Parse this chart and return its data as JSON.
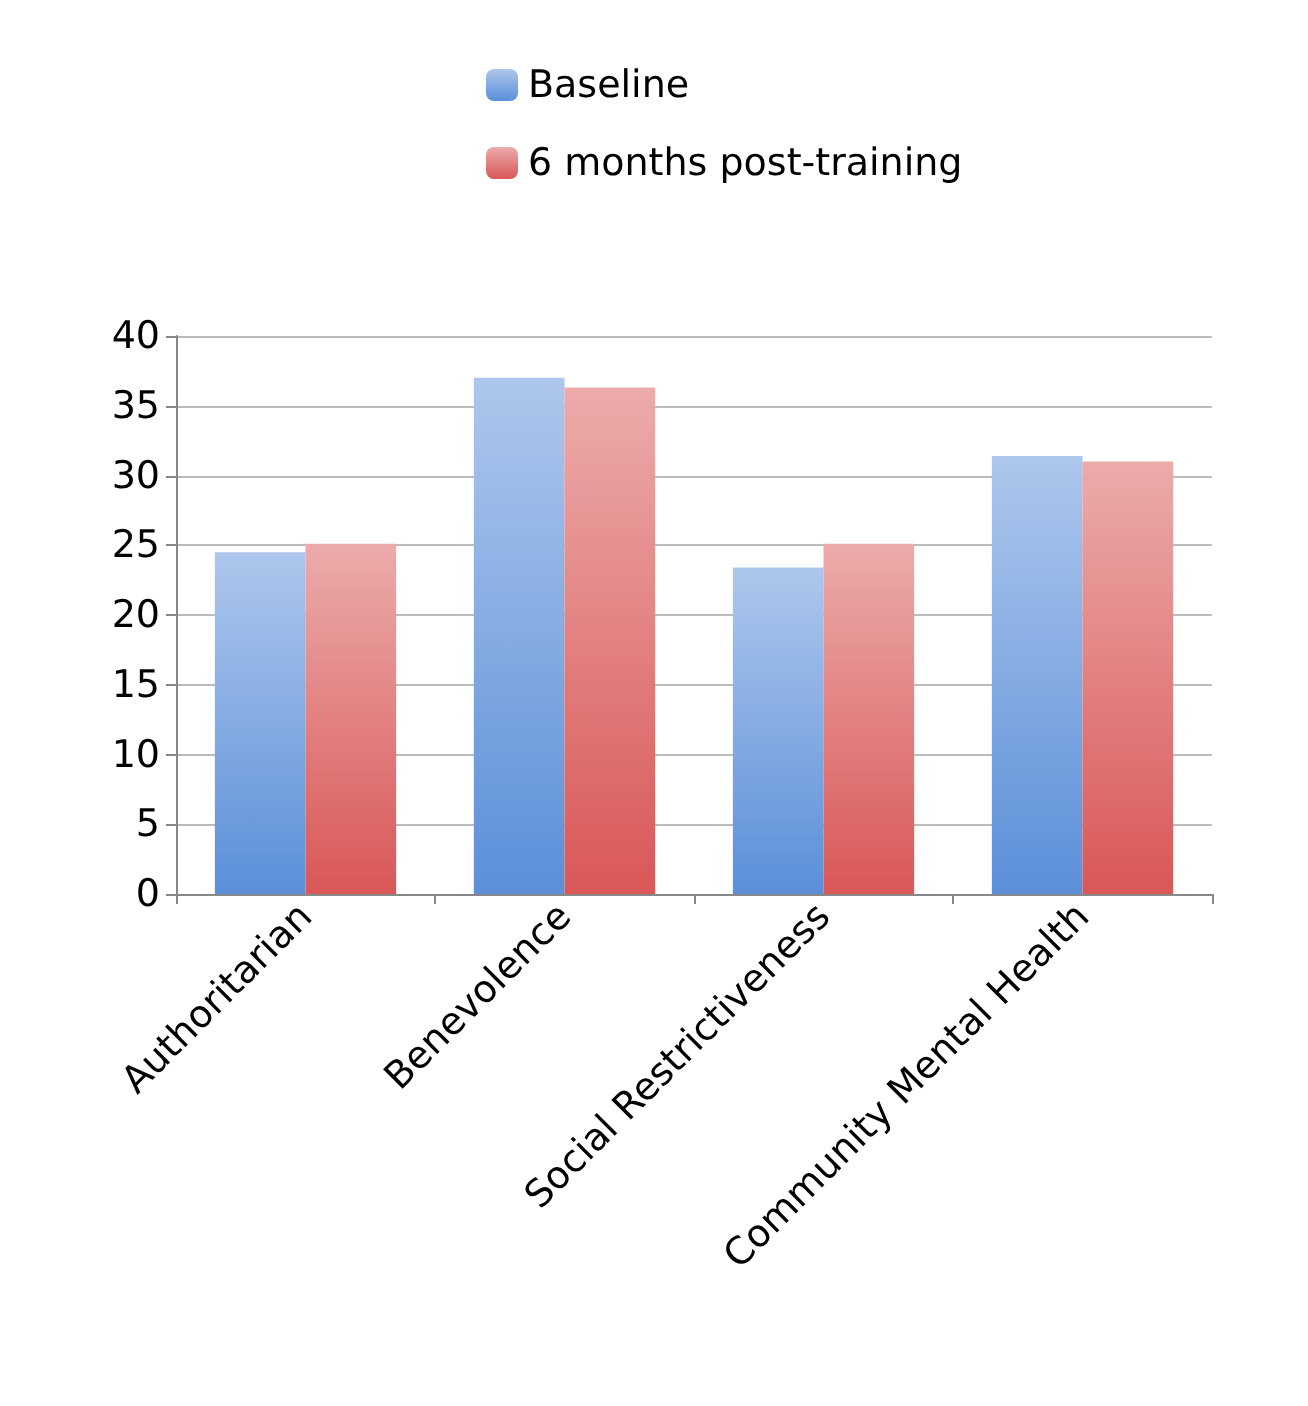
{
  "chart_data": {
    "type": "bar",
    "categories": [
      "Authoritarian",
      "Benevolence",
      "Social Restrictiveness",
      "Community Mental Health"
    ],
    "series": [
      {
        "name": "Baseline",
        "color": "#5b8fd9",
        "values": [
          24.5,
          37,
          23.4,
          31.4
        ]
      },
      {
        "name": "6 months post-training",
        "color": "#d95757",
        "values": [
          25.1,
          36.3,
          25.1,
          31
        ]
      }
    ],
    "ylim": [
      0,
      40
    ],
    "yticks": [
      0,
      5,
      10,
      15,
      20,
      25,
      30,
      35,
      40
    ],
    "grid": "y",
    "legend": "top"
  }
}
